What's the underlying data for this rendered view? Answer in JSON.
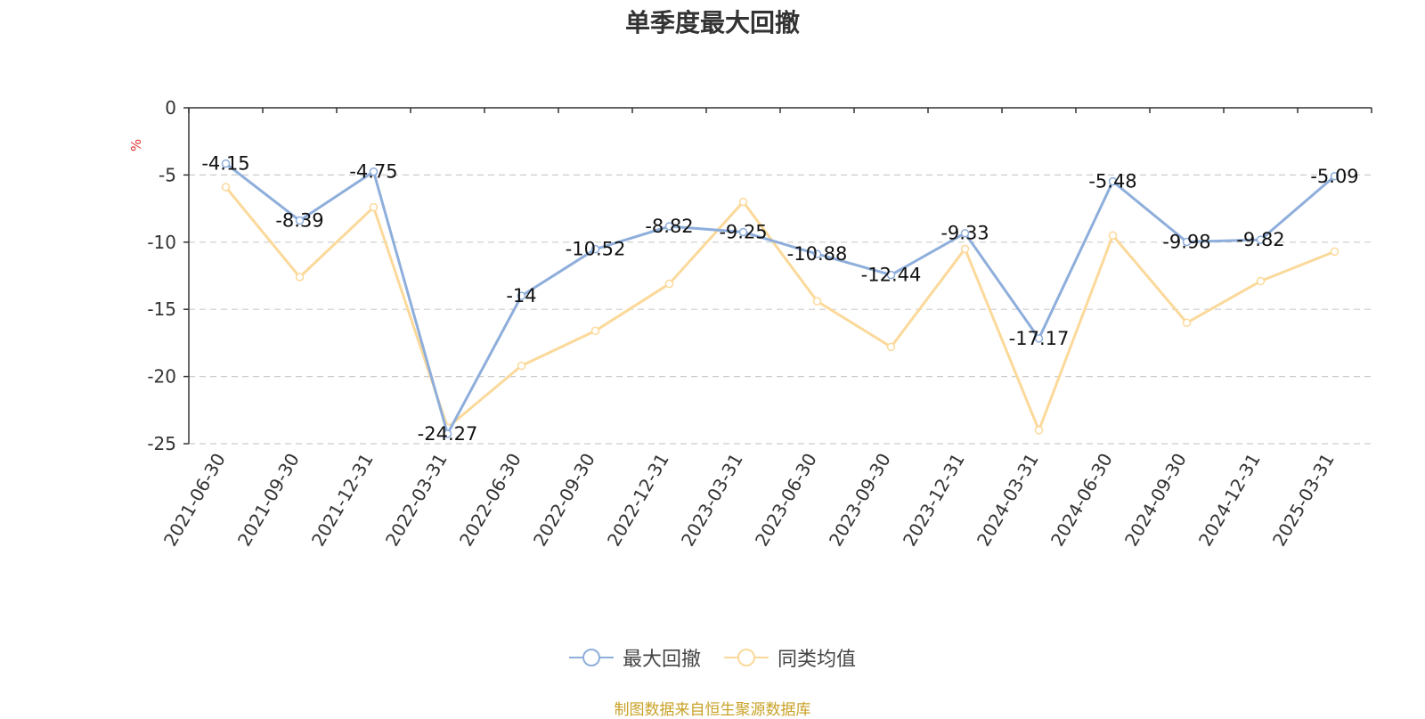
{
  "chart_data": {
    "type": "line",
    "title": "单季度最大回撤",
    "ylabel": "%",
    "ylim": [
      -25,
      0
    ],
    "yticks": [
      0,
      -5,
      -10,
      -15,
      -20,
      -25
    ],
    "grid": true,
    "legend_position": "bottom",
    "categories": [
      "2021-06-30",
      "2021-09-30",
      "2021-12-31",
      "2022-03-31",
      "2022-06-30",
      "2022-09-30",
      "2022-12-31",
      "2023-03-31",
      "2023-06-30",
      "2023-09-30",
      "2023-12-31",
      "2024-03-31",
      "2024-06-30",
      "2024-09-30",
      "2024-12-31",
      "2025-03-31"
    ],
    "series": [
      {
        "name": "最大回撤",
        "color": "#8eaedb",
        "show_labels": true,
        "values": [
          -4.15,
          -8.39,
          -4.75,
          -24.27,
          -14,
          -10.52,
          -8.82,
          -9.25,
          -10.88,
          -12.44,
          -9.33,
          -17.17,
          -5.48,
          -9.98,
          -9.82,
          -5.09
        ]
      },
      {
        "name": "同类均值",
        "color": "#fbd99a",
        "show_labels": false,
        "values": [
          -5.9,
          -12.6,
          -7.4,
          -23.8,
          -19.2,
          -16.6,
          -13.1,
          -7.0,
          -14.4,
          -17.8,
          -10.5,
          -24.0,
          -9.5,
          -16.0,
          -12.9,
          -10.7
        ]
      }
    ]
  },
  "source_note": "制图数据来自恒生聚源数据库"
}
